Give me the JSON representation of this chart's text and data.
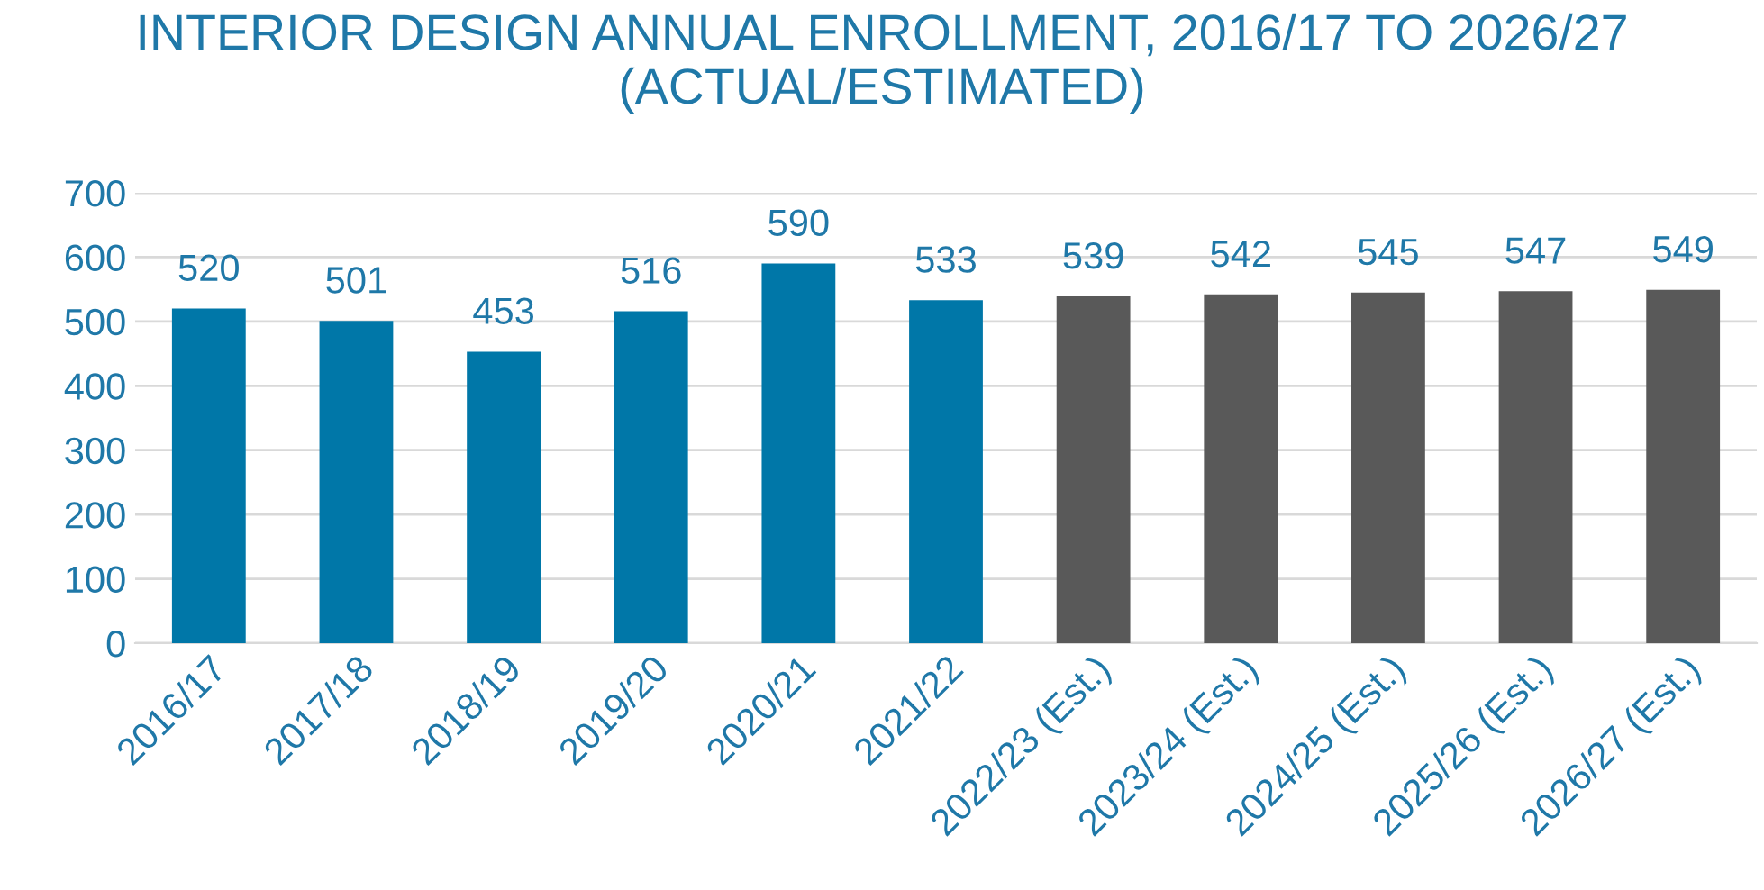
{
  "chart_data": {
    "type": "bar",
    "title": "INTERIOR DESIGN ANNUAL ENROLLMENT, 2016/17 TO 2026/27 (ACTUAL/ESTIMATED)",
    "categories": [
      "2016/17",
      "2017/18",
      "2018/19",
      "2019/20",
      "2020/21",
      "2021/22",
      "2022/23 (Est.)",
      "2023/24 (Est.)",
      "2024/25 (Est.)",
      "2025/26 (Est.)",
      "2026/27 (Est.)"
    ],
    "values": [
      520,
      501,
      453,
      516,
      590,
      533,
      539,
      542,
      545,
      547,
      549
    ],
    "colors": [
      "#0077a8",
      "#0077a8",
      "#0077a8",
      "#0077a8",
      "#0077a8",
      "#0077a8",
      "#595959",
      "#595959",
      "#595959",
      "#595959",
      "#595959"
    ],
    "data_labels": true,
    "ylim": [
      0,
      700
    ],
    "yticks": [
      0,
      100,
      200,
      300,
      400,
      500,
      600,
      700
    ],
    "grid": "y",
    "legend": false
  }
}
